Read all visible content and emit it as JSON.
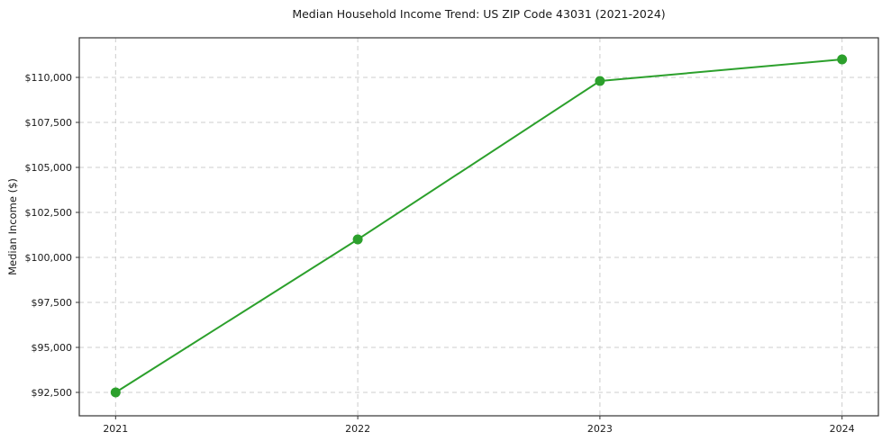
{
  "chart_data": {
    "type": "line",
    "title": "Median Household Income Trend: US ZIP Code 43031 (2021-2024)",
    "ylabel": "Median Income ($)",
    "xlabel": "",
    "x": [
      2021,
      2022,
      2023,
      2024
    ],
    "xtick_labels": [
      "2021",
      "2022",
      "2023",
      "2024"
    ],
    "values": [
      92500,
      101000,
      109800,
      111000
    ],
    "series_name": "Median Household Income",
    "yticks": [
      {
        "value": 92500,
        "label": "$92,500"
      },
      {
        "value": 95000,
        "label": "$95,000"
      },
      {
        "value": 97500,
        "label": "$97,500"
      },
      {
        "value": 100000,
        "label": "$100,000"
      },
      {
        "value": 102500,
        "label": "$102,500"
      },
      {
        "value": 105000,
        "label": "$105,000"
      },
      {
        "value": 107500,
        "label": "$107,500"
      },
      {
        "value": 110000,
        "label": "$110,000"
      }
    ],
    "ylim": [
      91200,
      112200
    ],
    "xlim": [
      2020.85,
      2024.15
    ],
    "grid": true,
    "grid_style": "dashed",
    "legend": "none",
    "line_color": "#2ca02c",
    "marker": "circle",
    "marker_radius": 5.5,
    "grid_color": "#cccccc",
    "axis_color": "#333333",
    "text_color": "#1a1a1a",
    "background": "#ffffff"
  }
}
